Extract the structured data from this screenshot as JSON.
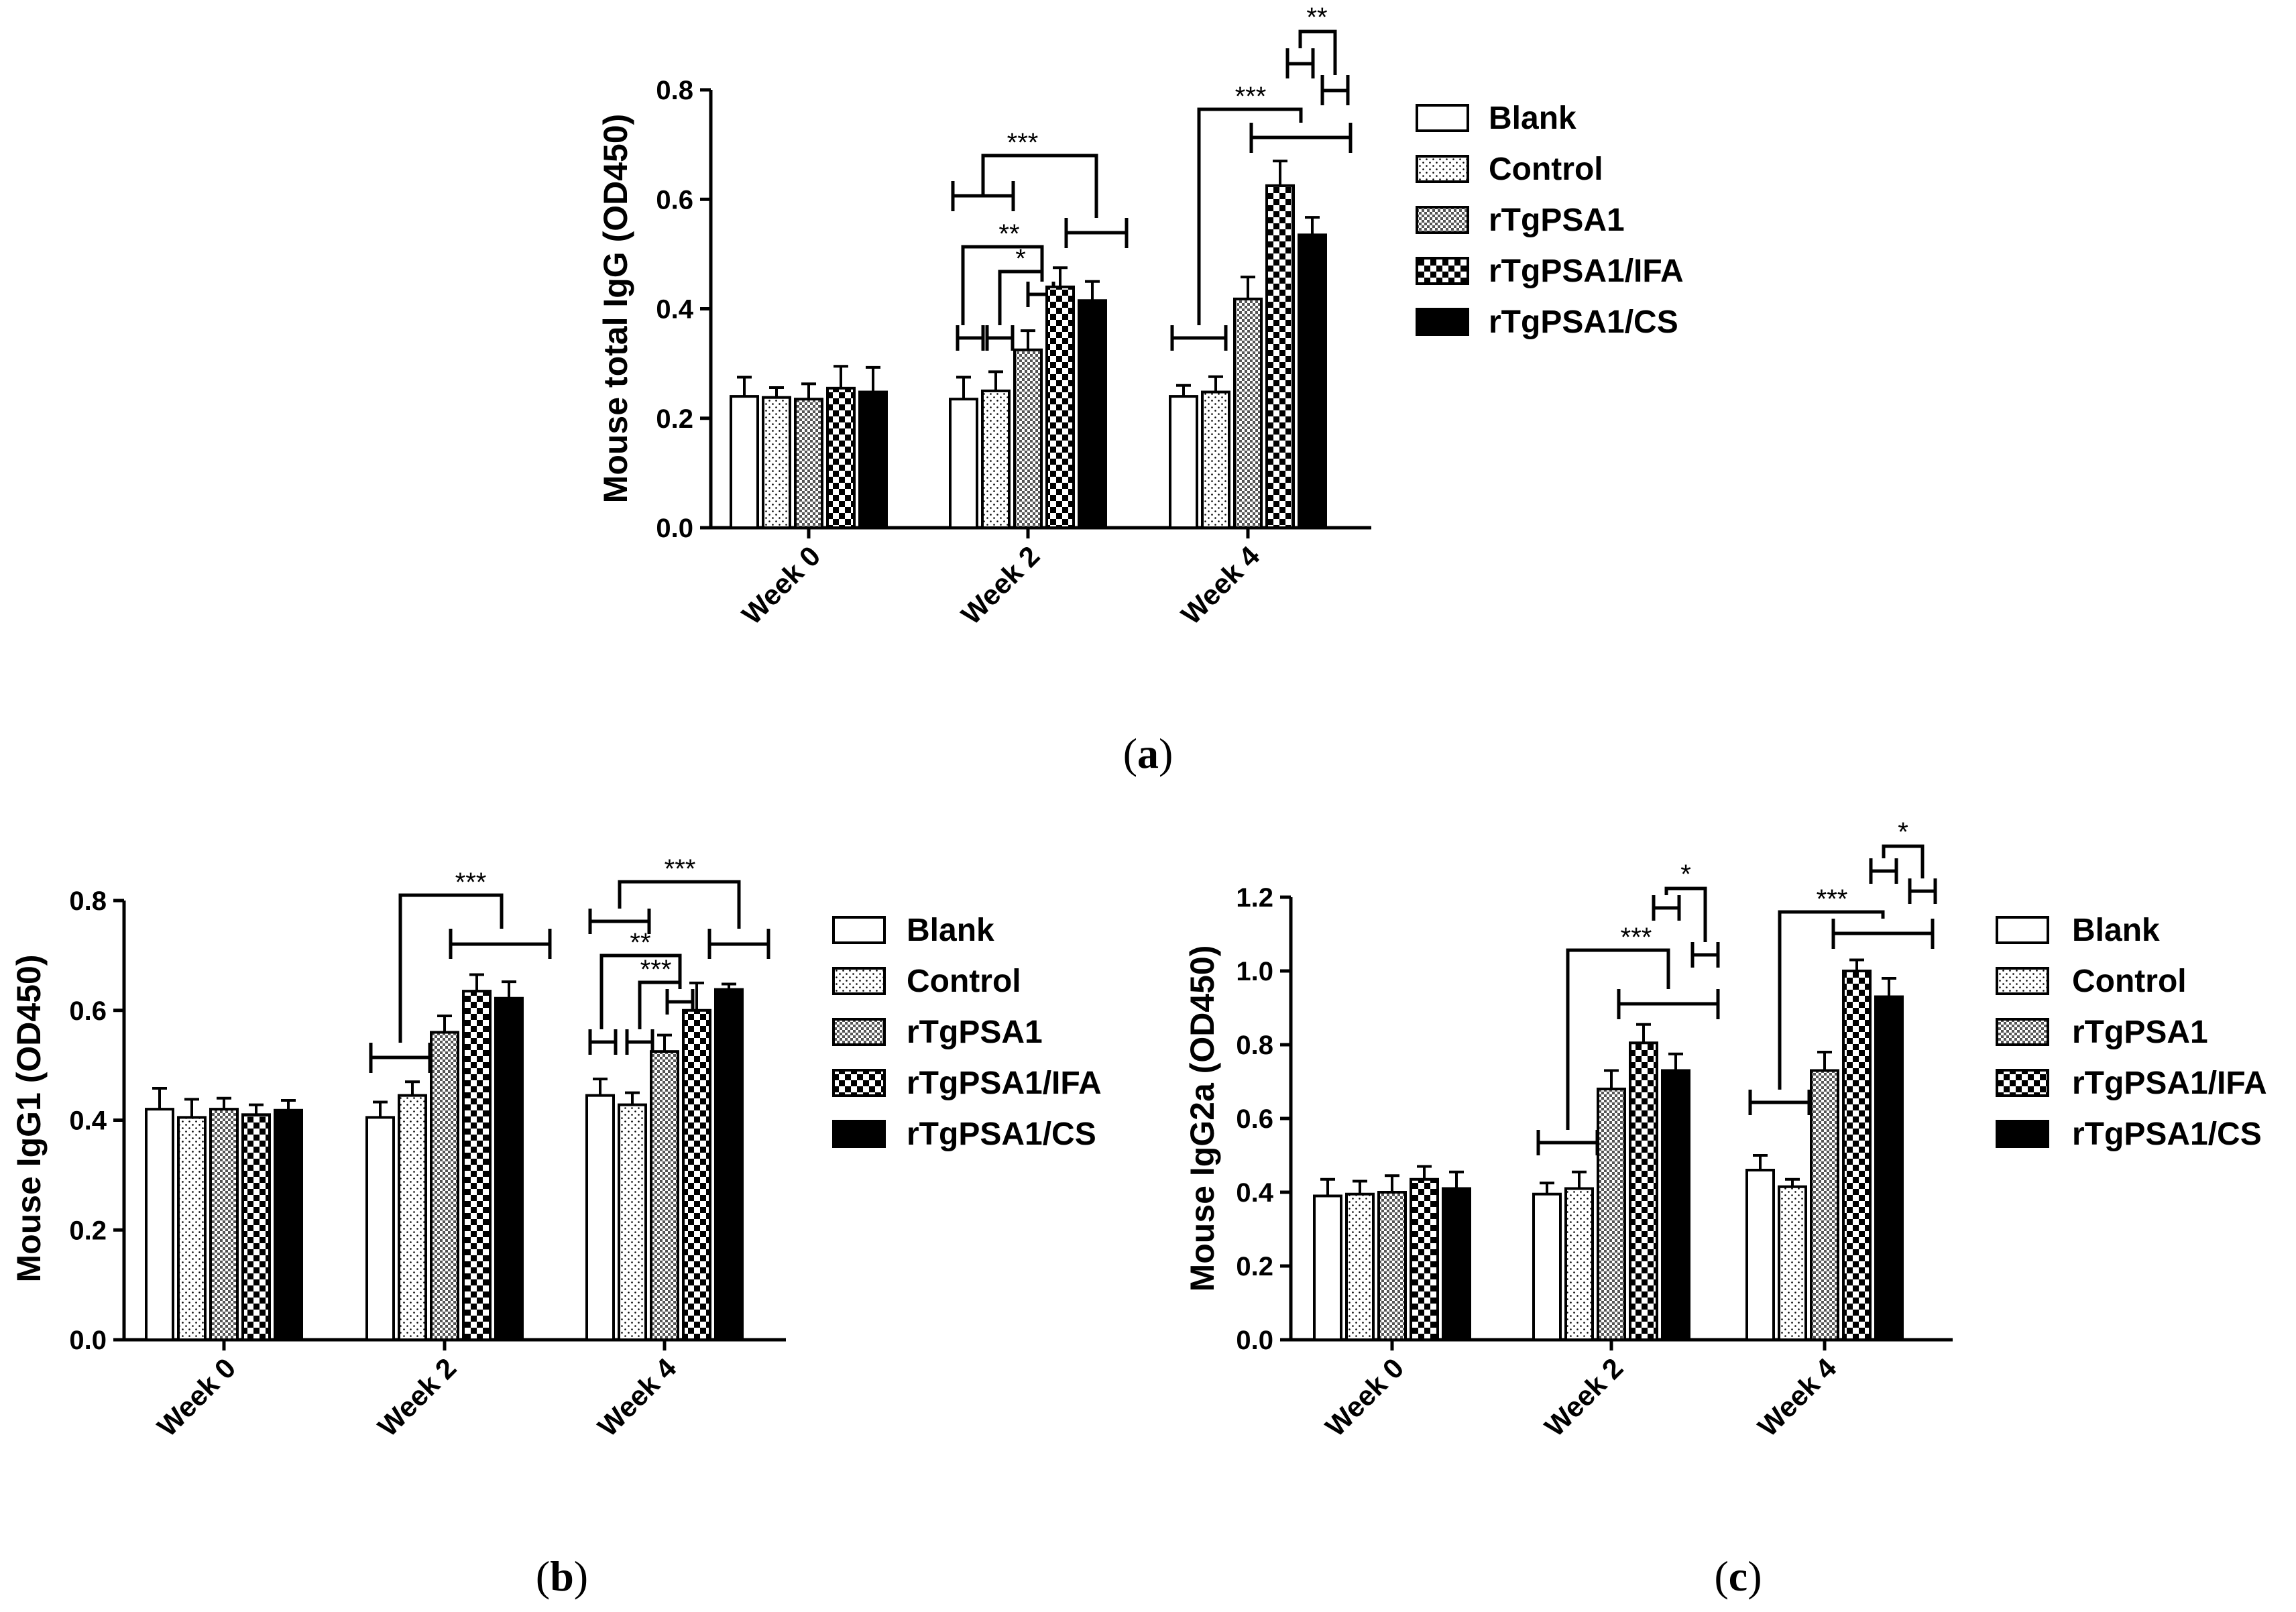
{
  "series_names": [
    "Blank",
    "Control",
    "rTgPSA1",
    "rTgPSA1/IFA",
    "rTgPSA1/CS"
  ],
  "categories": [
    "Week 0",
    "Week 2",
    "Week 4"
  ],
  "chart_data": [
    {
      "type": "bar",
      "id": "a",
      "caption_letter": "a",
      "ylabel": "Mouse total IgG (OD450)",
      "ylim": [
        0,
        0.8
      ],
      "yticks": [
        "0.0",
        "0.2",
        "0.4",
        "0.6",
        "0.8"
      ],
      "categories": [
        "Week 0",
        "Week 2",
        "Week 4"
      ],
      "series": [
        {
          "name": "Blank",
          "values": [
            0.24,
            0.235,
            0.24
          ],
          "errors": [
            0.035,
            0.04,
            0.02
          ]
        },
        {
          "name": "Control",
          "values": [
            0.238,
            0.25,
            0.248
          ],
          "errors": [
            0.018,
            0.035,
            0.028
          ]
        },
        {
          "name": "rTgPSA1",
          "values": [
            0.235,
            0.325,
            0.418
          ],
          "errors": [
            0.028,
            0.035,
            0.04
          ]
        },
        {
          "name": "rTgPSA1/IFA",
          "values": [
            0.255,
            0.44,
            0.625
          ],
          "errors": [
            0.04,
            0.035,
            0.045
          ]
        },
        {
          "name": "rTgPSA1/CS",
          "values": [
            0.248,
            0.415,
            0.535
          ],
          "errors": [
            0.045,
            0.035,
            0.032
          ]
        }
      ],
      "annotations": [
        "***",
        "**",
        "*",
        "***",
        "**"
      ]
    },
    {
      "type": "bar",
      "id": "b",
      "caption_letter": "b",
      "ylabel": "Mouse IgG1 (OD450)",
      "ylim": [
        0,
        0.8
      ],
      "yticks": [
        "0.0",
        "0.2",
        "0.4",
        "0.6",
        "0.8"
      ],
      "categories": [
        "Week 0",
        "Week 2",
        "Week 4"
      ],
      "series": [
        {
          "name": "Blank",
          "values": [
            0.42,
            0.405,
            0.445
          ],
          "errors": [
            0.038,
            0.028,
            0.03
          ]
        },
        {
          "name": "Control",
          "values": [
            0.405,
            0.445,
            0.428
          ],
          "errors": [
            0.033,
            0.025,
            0.022
          ]
        },
        {
          "name": "rTgPSA1",
          "values": [
            0.42,
            0.56,
            0.525
          ],
          "errors": [
            0.02,
            0.03,
            0.03
          ]
        },
        {
          "name": "rTgPSA1/IFA",
          "values": [
            0.41,
            0.635,
            0.6
          ],
          "errors": [
            0.018,
            0.03,
            0.05
          ]
        },
        {
          "name": "rTgPSA1/CS",
          "values": [
            0.418,
            0.622,
            0.638
          ],
          "errors": [
            0.018,
            0.03,
            0.01
          ]
        }
      ],
      "annotations": [
        "***",
        "***",
        "**",
        "***"
      ]
    },
    {
      "type": "bar",
      "id": "c",
      "caption_letter": "c",
      "ylabel": "Mouse IgG2a (OD450)",
      "ylim": [
        0,
        1.2
      ],
      "yticks": [
        "0.0",
        "0.2",
        "0.4",
        "0.6",
        "0.8",
        "1.0",
        "1.2"
      ],
      "categories": [
        "Week 0",
        "Week 2",
        "Week 4"
      ],
      "series": [
        {
          "name": "Blank",
          "values": [
            0.39,
            0.395,
            0.46
          ],
          "errors": [
            0.045,
            0.03,
            0.04
          ]
        },
        {
          "name": "Control",
          "values": [
            0.395,
            0.41,
            0.415
          ],
          "errors": [
            0.035,
            0.045,
            0.02
          ]
        },
        {
          "name": "rTgPSA1",
          "values": [
            0.4,
            0.68,
            0.73
          ],
          "errors": [
            0.045,
            0.05,
            0.05
          ]
        },
        {
          "name": "rTgPSA1/IFA",
          "values": [
            0.435,
            0.805,
            1.0
          ],
          "errors": [
            0.035,
            0.05,
            0.03
          ]
        },
        {
          "name": "rTgPSA1/CS",
          "values": [
            0.41,
            0.73,
            0.93
          ],
          "errors": [
            0.045,
            0.045,
            0.05
          ]
        }
      ],
      "annotations": [
        "***",
        "*",
        "***",
        "*"
      ]
    }
  ]
}
